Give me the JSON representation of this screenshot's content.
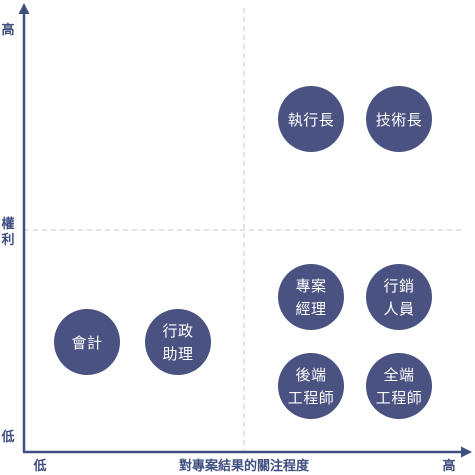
{
  "colors": {
    "axis": "#3f4f80",
    "guide": "#c4c7cf",
    "node_fill": "#4a5282",
    "node_text": "#ffffff"
  },
  "axes": {
    "y_high": "高",
    "y_title_line1": "權",
    "y_title_line2": "利",
    "y_low": "低",
    "x_low": "低",
    "x_title": "對專案結果的關注程度",
    "x_high": "高"
  },
  "nodes": {
    "ceo": {
      "line1": "執行長",
      "line2": "",
      "power": "high",
      "interest": "high"
    },
    "cto": {
      "line1": "技術長",
      "line2": "",
      "power": "high",
      "interest": "high"
    },
    "pm": {
      "line1": "專案",
      "line2": "經理",
      "power": "low",
      "interest": "high"
    },
    "marketing": {
      "line1": "行銷",
      "line2": "人員",
      "power": "low",
      "interest": "high"
    },
    "accountant": {
      "line1": "會計",
      "line2": "",
      "power": "low",
      "interest": "low"
    },
    "admin": {
      "line1": "行政",
      "line2": "助理",
      "power": "low",
      "interest": "low"
    },
    "backend": {
      "line1": "後端",
      "line2": "工程師",
      "power": "low",
      "interest": "high"
    },
    "fullstack": {
      "line1": "全端",
      "line2": "工程師",
      "power": "low",
      "interest": "high"
    }
  }
}
